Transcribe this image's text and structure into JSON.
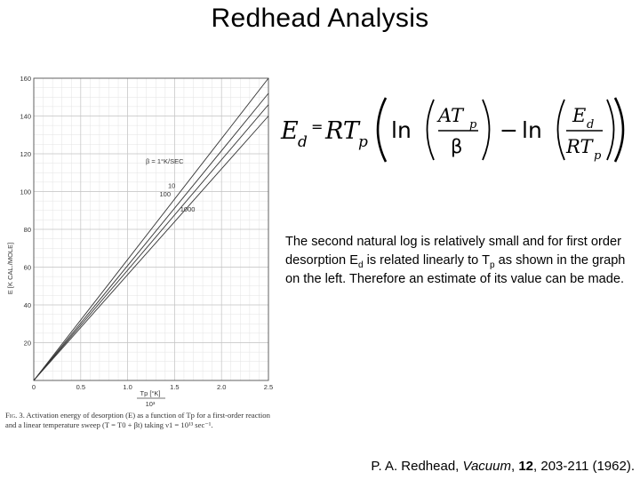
{
  "slide": {
    "title": "Redhead Analysis"
  },
  "figure": {
    "y_axis_label": "E [K CAL./MOLE]",
    "x_axis_label": "Tp [°K]",
    "x_axis_scale": "10³",
    "beta_label": "β = 1°K/SEC",
    "caption": {
      "fig_label": "Fig. 3.",
      "text": "Activation energy of desorption (E) as a function of Tp for a first-order reaction and a linear temperature sweep (T = T0 + βt) taking ν1 = 10¹³ sec⁻¹."
    }
  },
  "chart_data": {
    "type": "line",
    "xlabel": "Tp [°K]",
    "ylabel": "E [K CAL./MOLE]",
    "xlim": [
      0,
      2.5
    ],
    "ylim": [
      0,
      160
    ],
    "x_ticks": [
      "0",
      "0.5",
      "1.0",
      "1.5",
      "2.0",
      "2.5"
    ],
    "y_ticks": [
      "20",
      "40",
      "60",
      "80",
      "100",
      "120",
      "140",
      "160"
    ],
    "grid": true,
    "x": [
      0,
      2.5
    ],
    "series": [
      {
        "name": "1",
        "values": [
          0,
          160
        ]
      },
      {
        "name": "10",
        "values": [
          0,
          152
        ]
      },
      {
        "name": "100",
        "values": [
          0,
          146
        ]
      },
      {
        "name": "1000",
        "values": [
          0,
          140
        ]
      }
    ],
    "line_labels": [
      {
        "text": "10",
        "x": 1.43,
        "y": 101.8
      },
      {
        "text": "100",
        "x": 1.34,
        "y": 97.5
      },
      {
        "text": "1000",
        "x": 1.56,
        "y": 89.5
      }
    ]
  },
  "formula": {
    "lhs": "E",
    "lhs_sub": "d",
    "equals": "=",
    "rt": "RT",
    "rt_sub": "p",
    "ln1": "ln",
    "num1_a": "AT",
    "num1_sub": "p",
    "den1": "β",
    "minus": "−",
    "ln2": "ln",
    "num2": "E",
    "num2_sub": "d",
    "den2": "RT",
    "den2_sub": "p"
  },
  "body": {
    "line_a": "The second natural log is relatively small and for first order desorption E",
    "sub_a": "d",
    "line_b": " is related linearly to T",
    "sub_b": "p",
    "line_c": " as shown in the graph on the left. Therefore an estimate of its value can be made."
  },
  "reference": {
    "authors": "P. A. Redhead, ",
    "journal": "Vacuum",
    "sep1": ", ",
    "volume": "12",
    "pages": ", 203-211 (1962)."
  }
}
